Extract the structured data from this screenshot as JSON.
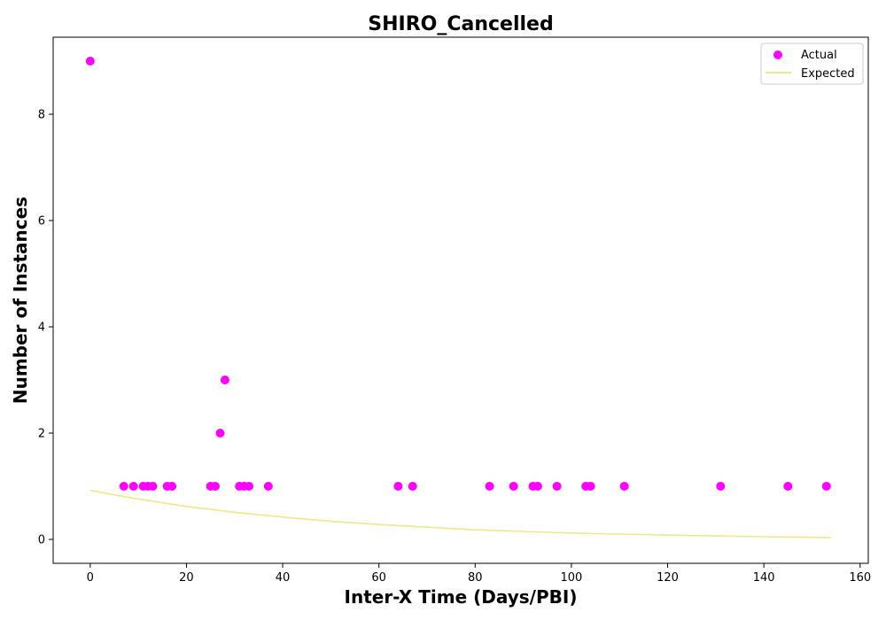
{
  "chart_data": {
    "type": "scatter",
    "title": "SHIRO_Cancelled",
    "xlabel": "Inter-X Time (Days/PBI)",
    "ylabel": "Number of Instances",
    "xlim": [
      -7.7,
      161.7
    ],
    "ylim": [
      -0.45,
      9.45
    ],
    "xticks": [
      0,
      20,
      40,
      60,
      80,
      100,
      120,
      140,
      160
    ],
    "yticks": [
      0,
      2,
      4,
      6,
      8
    ],
    "grid": false,
    "legend_position": "top-right",
    "series": [
      {
        "name": "Actual",
        "kind": "scatter",
        "color": "#ff00ff",
        "points": [
          [
            0,
            9
          ],
          [
            7,
            1
          ],
          [
            9,
            1
          ],
          [
            11,
            1
          ],
          [
            12,
            1
          ],
          [
            13,
            1
          ],
          [
            16,
            1
          ],
          [
            17,
            1
          ],
          [
            25,
            1
          ],
          [
            26,
            1
          ],
          [
            27,
            2
          ],
          [
            28,
            3
          ],
          [
            31,
            1
          ],
          [
            32,
            1
          ],
          [
            33,
            1
          ],
          [
            37,
            1
          ],
          [
            64,
            1
          ],
          [
            67,
            1
          ],
          [
            83,
            1
          ],
          [
            88,
            1
          ],
          [
            92,
            1
          ],
          [
            93,
            1
          ],
          [
            97,
            1
          ],
          [
            103,
            1
          ],
          [
            104,
            1
          ],
          [
            111,
            1
          ],
          [
            131,
            1
          ],
          [
            145,
            1
          ],
          [
            153,
            1
          ]
        ]
      },
      {
        "name": "Expected",
        "kind": "line",
        "color": "#f0e68c",
        "points": [
          [
            0,
            0.92
          ],
          [
            10,
            0.76
          ],
          [
            20,
            0.62
          ],
          [
            30,
            0.51
          ],
          [
            40,
            0.42
          ],
          [
            50,
            0.34
          ],
          [
            60,
            0.28
          ],
          [
            70,
            0.23
          ],
          [
            80,
            0.18
          ],
          [
            90,
            0.15
          ],
          [
            100,
            0.12
          ],
          [
            110,
            0.1
          ],
          [
            120,
            0.08
          ],
          [
            130,
            0.065
          ],
          [
            140,
            0.05
          ],
          [
            154,
            0.035
          ]
        ]
      }
    ]
  }
}
